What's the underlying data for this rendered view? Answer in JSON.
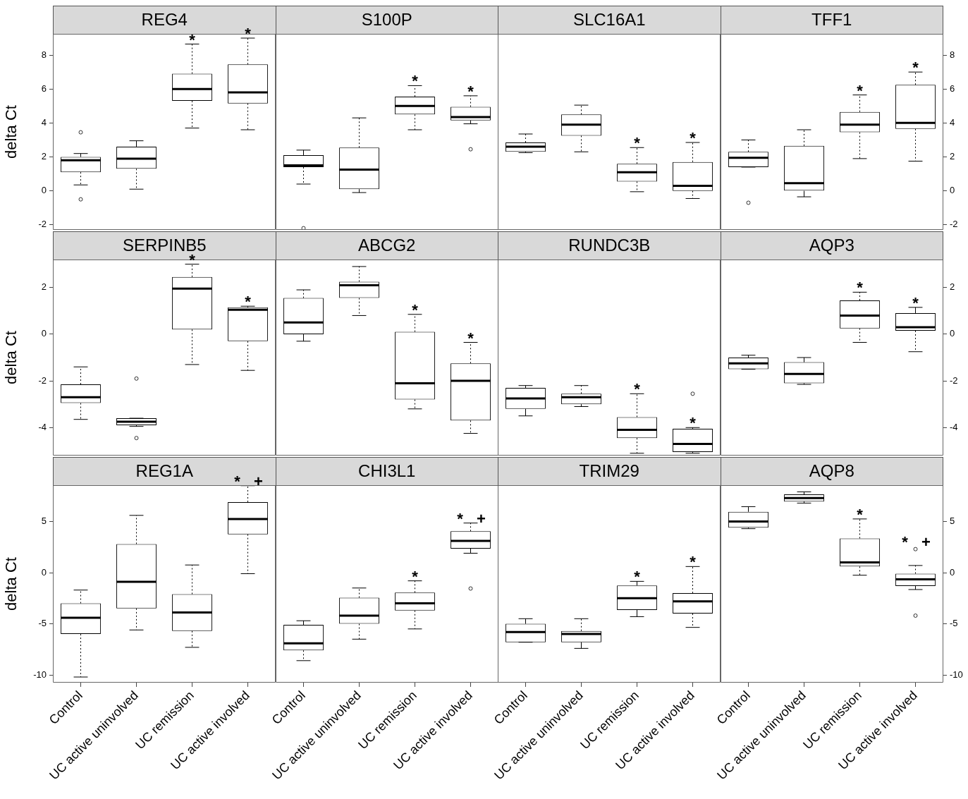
{
  "chart_data": [
    {
      "type": "box",
      "title": "REG4",
      "ylabel": "delta Ct",
      "categories": [
        "Control",
        "UC active uninvolved",
        "UC remission",
        "UC active involved"
      ],
      "ylim": [
        -2.3,
        9.25
      ],
      "yticks": [
        -2,
        0,
        2,
        4,
        6,
        8
      ],
      "tick_labels": "y",
      "boxes": [
        {
          "low": 0.35,
          "q1": 1.1,
          "median": 1.8,
          "q3": 2.0,
          "high": 2.2,
          "outliers": [
            3.45,
            -0.5
          ]
        },
        {
          "low": 0.1,
          "q1": 1.3,
          "median": 1.9,
          "q3": 2.6,
          "high": 2.95
        },
        {
          "low": 3.7,
          "q1": 5.3,
          "median": 6.0,
          "q3": 6.9,
          "high": 8.65
        },
        {
          "low": 3.6,
          "q1": 5.15,
          "median": 5.8,
          "q3": 7.45,
          "high": 9.0
        }
      ],
      "annotations": [
        {
          "text": "*",
          "x": "UC remission",
          "y": 8.65
        },
        {
          "text": "*",
          "x": "UC active involved",
          "y": 9.0
        }
      ]
    },
    {
      "type": "box",
      "title": "S100P",
      "categories": [
        "Control",
        "UC active uninvolved",
        "UC remission",
        "UC active involved"
      ],
      "ylim": [
        -2.3,
        9.25
      ],
      "yticks": [
        -2,
        0,
        2,
        4,
        6,
        8
      ],
      "tick_labels": false,
      "boxes": [
        {
          "low": 0.4,
          "q1": 1.4,
          "median": 1.5,
          "q3": 2.1,
          "high": 2.4,
          "outliers": [
            -2.2
          ]
        },
        {
          "low": -0.1,
          "q1": 0.1,
          "median": 1.25,
          "q3": 2.55,
          "high": 4.3
        },
        {
          "low": 3.6,
          "q1": 4.5,
          "median": 5.0,
          "q3": 5.55,
          "high": 6.2
        },
        {
          "low": 3.95,
          "q1": 4.15,
          "median": 4.35,
          "q3": 4.95,
          "high": 5.6,
          "outliers": [
            2.45
          ]
        }
      ],
      "annotations": [
        {
          "text": "*",
          "x": "UC remission",
          "y": 6.2
        },
        {
          "text": "*",
          "x": "UC active involved",
          "y": 5.6
        }
      ]
    },
    {
      "type": "box",
      "title": "SLC16A1",
      "categories": [
        "Control",
        "UC active uninvolved",
        "UC remission",
        "UC active involved"
      ],
      "ylim": [
        -2.3,
        9.25
      ],
      "yticks": [
        -2,
        0,
        2,
        4,
        6,
        8
      ],
      "tick_labels": false,
      "boxes": [
        {
          "low": 2.25,
          "q1": 2.3,
          "median": 2.6,
          "q3": 2.85,
          "high": 3.35
        },
        {
          "low": 2.3,
          "q1": 3.25,
          "median": 3.9,
          "q3": 4.5,
          "high": 5.05
        },
        {
          "low": -0.05,
          "q1": 0.55,
          "median": 1.1,
          "q3": 1.6,
          "high": 2.55
        },
        {
          "low": -0.45,
          "q1": 0.0,
          "median": 0.3,
          "q3": 1.7,
          "high": 2.85
        }
      ],
      "annotations": [
        {
          "text": "*",
          "x": "UC remission",
          "y": 2.55
        },
        {
          "text": "*",
          "x": "UC active involved",
          "y": 2.85
        }
      ]
    },
    {
      "type": "box",
      "title": "TFF1",
      "categories": [
        "Control",
        "UC active uninvolved",
        "UC remission",
        "UC active involved"
      ],
      "ylim": [
        -2.3,
        9.25
      ],
      "yticks": [
        -2,
        0,
        2,
        4,
        6,
        8
      ],
      "tick_labels": "y",
      "boxes": [
        {
          "low": 1.4,
          "q1": 1.4,
          "median": 1.95,
          "q3": 2.3,
          "high": 3.0,
          "outliers": [
            -0.7
          ]
        },
        {
          "low": -0.35,
          "q1": 0.0,
          "median": 0.45,
          "q3": 2.65,
          "high": 3.6
        },
        {
          "low": 1.9,
          "q1": 3.45,
          "median": 3.9,
          "q3": 4.65,
          "high": 5.65
        },
        {
          "low": 1.75,
          "q1": 3.65,
          "median": 4.0,
          "q3": 6.25,
          "high": 7.0
        }
      ],
      "annotations": [
        {
          "text": "*",
          "x": "UC remission",
          "y": 5.65
        },
        {
          "text": "*",
          "x": "UC active involved",
          "y": 7.0
        }
      ]
    },
    {
      "type": "box",
      "title": "SERPINB5",
      "ylabel": "delta Ct",
      "categories": [
        "Control",
        "UC active uninvolved",
        "UC remission",
        "UC active involved"
      ],
      "ylim": [
        -5.2,
        3.2
      ],
      "yticks": [
        -4,
        -2,
        0,
        2
      ],
      "tick_labels": "y",
      "boxes": [
        {
          "low": -3.65,
          "q1": -2.95,
          "median": -2.7,
          "q3": -2.15,
          "high": -1.4
        },
        {
          "low": -3.95,
          "q1": -3.9,
          "median": -3.75,
          "q3": -3.6,
          "high": -3.6,
          "outliers": [
            -1.9,
            -4.45
          ]
        },
        {
          "low": -1.3,
          "q1": 0.2,
          "median": 1.95,
          "q3": 2.45,
          "high": 3.0
        },
        {
          "low": -1.55,
          "q1": -0.3,
          "median": 1.05,
          "q3": 1.15,
          "high": 1.2
        }
      ],
      "annotations": [
        {
          "text": "*",
          "x": "UC remission",
          "y": 3.0
        },
        {
          "text": "*",
          "x": "UC active involved",
          "y": 1.2
        }
      ]
    },
    {
      "type": "box",
      "title": "ABCG2",
      "categories": [
        "Control",
        "UC active uninvolved",
        "UC remission",
        "UC active involved"
      ],
      "ylim": [
        -5.2,
        3.2
      ],
      "yticks": [
        -4,
        -2,
        0,
        2
      ],
      "tick_labels": false,
      "boxes": [
        {
          "low": -0.3,
          "q1": 0.0,
          "median": 0.5,
          "q3": 1.55,
          "high": 1.9
        },
        {
          "low": 0.8,
          "q1": 1.55,
          "median": 2.1,
          "q3": 2.25,
          "high": 2.9
        },
        {
          "low": -3.2,
          "q1": -2.8,
          "median": -2.1,
          "q3": 0.1,
          "high": 0.85
        },
        {
          "low": -4.25,
          "q1": -3.7,
          "median": -2.0,
          "q3": -1.25,
          "high": -0.35
        }
      ],
      "annotations": [
        {
          "text": "*",
          "x": "UC remission",
          "y": 0.85
        },
        {
          "text": "*",
          "x": "UC active involved",
          "y": -0.35
        }
      ]
    },
    {
      "type": "box",
      "title": "RUNDC3B",
      "categories": [
        "Control",
        "UC active uninvolved",
        "UC remission",
        "UC active involved"
      ],
      "ylim": [
        -5.2,
        3.2
      ],
      "yticks": [
        -4,
        -2,
        0,
        2
      ],
      "tick_labels": false,
      "boxes": [
        {
          "low": -3.5,
          "q1": -3.2,
          "median": -2.75,
          "q3": -2.3,
          "high": -2.2
        },
        {
          "low": -3.1,
          "q1": -3.0,
          "median": -2.7,
          "q3": -2.55,
          "high": -2.2
        },
        {
          "low": -5.1,
          "q1": -4.45,
          "median": -4.1,
          "q3": -3.55,
          "high": -2.55
        },
        {
          "low": -5.1,
          "q1": -5.05,
          "median": -4.7,
          "q3": -4.05,
          "high": -4.0,
          "outliers": [
            -2.55
          ]
        }
      ],
      "annotations": [
        {
          "text": "*",
          "x": "UC remission",
          "y": -2.55
        },
        {
          "text": "*",
          "x": "UC active involved",
          "y": -4.0
        }
      ]
    },
    {
      "type": "box",
      "title": "AQP3",
      "categories": [
        "Control",
        "UC active uninvolved",
        "UC remission",
        "UC active involved"
      ],
      "ylim": [
        -5.2,
        3.2
      ],
      "yticks": [
        -4,
        -2,
        0,
        2
      ],
      "tick_labels": "y",
      "boxes": [
        {
          "low": -1.5,
          "q1": -1.5,
          "median": -1.25,
          "q3": -1.0,
          "high": -0.9
        },
        {
          "low": -2.15,
          "q1": -2.1,
          "median": -1.7,
          "q3": -1.2,
          "high": -1.0
        },
        {
          "low": -0.35,
          "q1": 0.25,
          "median": 0.8,
          "q3": 1.45,
          "high": 1.8
        },
        {
          "low": -0.75,
          "q1": 0.15,
          "median": 0.3,
          "q3": 0.9,
          "high": 1.15
        }
      ],
      "annotations": [
        {
          "text": "*",
          "x": "UC remission",
          "y": 1.8
        },
        {
          "text": "*",
          "x": "UC active involved",
          "y": 1.15
        }
      ]
    },
    {
      "type": "box",
      "title": "REG1A",
      "ylabel": "delta Ct",
      "categories": [
        "Control",
        "UC active uninvolved",
        "UC remission",
        "UC active involved"
      ],
      "ylim": [
        -10.75,
        8.55
      ],
      "yticks": [
        -10,
        -5,
        0,
        5
      ],
      "boxes": [
        {
          "low": -10.2,
          "q1": -6.0,
          "median": -4.4,
          "q3": -3.0,
          "high": -1.7
        },
        {
          "low": -5.6,
          "q1": -3.5,
          "median": -0.9,
          "q3": 2.8,
          "high": 5.6
        },
        {
          "low": -7.3,
          "q1": -5.7,
          "median": -3.9,
          "q3": -2.1,
          "high": 0.75
        },
        {
          "low": -0.1,
          "q1": 3.75,
          "median": 5.25,
          "q3": 6.9,
          "high": 8.5
        }
      ],
      "annotations": [
        {
          "text": "*",
          "x": "UC active involved",
          "y": 8.5
        },
        {
          "text": "+",
          "x": "UC active involved",
          "y": 8.5
        }
      ]
    },
    {
      "type": "box",
      "title": "CHI3L1",
      "categories": [
        "Control",
        "UC active uninvolved",
        "UC remission",
        "UC active involved"
      ],
      "ylim": [
        -10.75,
        8.55
      ],
      "yticks": [
        -10,
        -5,
        0,
        5
      ],
      "tick_labels": "x",
      "boxes": [
        {
          "low": -8.6,
          "q1": -7.6,
          "median": -6.9,
          "q3": -5.1,
          "high": -4.7
        },
        {
          "low": -6.5,
          "q1": -5.0,
          "median": -4.2,
          "q3": -2.45,
          "high": -1.5
        },
        {
          "low": -5.5,
          "q1": -3.7,
          "median": -3.0,
          "q3": -1.95,
          "high": -0.8
        },
        {
          "low": 1.9,
          "q1": 2.35,
          "median": 3.1,
          "q3": 4.05,
          "high": 4.85,
          "outliers": [
            -1.55
          ]
        }
      ],
      "annotations": [
        {
          "text": "*",
          "x": "UC remission",
          "y": -0.8
        },
        {
          "text": "*",
          "x": "UC active involved",
          "y": 4.85
        },
        {
          "text": "+",
          "x": "UC active involved",
          "y": 4.85
        }
      ]
    },
    {
      "type": "box",
      "title": "TRIM29",
      "categories": [
        "Control",
        "UC active uninvolved",
        "UC remission",
        "UC active involved"
      ],
      "ylim": [
        -10.75,
        8.55
      ],
      "yticks": [
        -10,
        -5,
        0,
        5
      ],
      "tick_labels": "x",
      "boxes": [
        {
          "low": -6.8,
          "q1": -6.8,
          "median": -5.8,
          "q3": -5.0,
          "high": -4.5
        },
        {
          "low": -7.4,
          "q1": -6.8,
          "median": -6.0,
          "q3": -5.7,
          "high": -4.5
        },
        {
          "low": -4.3,
          "q1": -3.65,
          "median": -2.5,
          "q3": -1.25,
          "high": -0.85
        },
        {
          "low": -5.35,
          "q1": -4.0,
          "median": -2.8,
          "q3": -2.0,
          "high": 0.6
        }
      ],
      "annotations": [
        {
          "text": "*",
          "x": "UC remission",
          "y": -0.85
        },
        {
          "text": "*",
          "x": "UC active involved",
          "y": 0.6
        }
      ]
    },
    {
      "type": "box",
      "title": "AQP8",
      "categories": [
        "Control",
        "UC active uninvolved",
        "UC remission",
        "UC active involved"
      ],
      "ylim": [
        -10.75,
        8.55
      ],
      "yticks": [
        -10,
        -5,
        0,
        5
      ],
      "boxes": [
        {
          "low": 4.3,
          "q1": 4.4,
          "median": 5.0,
          "q3": 5.95,
          "high": 6.45
        },
        {
          "low": 6.8,
          "q1": 6.95,
          "median": 7.3,
          "q3": 7.65,
          "high": 7.9
        },
        {
          "low": -0.25,
          "q1": 0.6,
          "median": 1.0,
          "q3": 3.35,
          "high": 5.25
        },
        {
          "low": -1.65,
          "q1": -1.3,
          "median": -0.65,
          "q3": -0.1,
          "high": 0.7,
          "outliers": [
            2.3,
            -4.2
          ]
        }
      ],
      "annotations": [
        {
          "text": "*",
          "x": "UC remission",
          "y": 5.25
        },
        {
          "text": "*",
          "x": "UC active involved",
          "y": 0.7
        },
        {
          "text": "+",
          "x": "UC active involved",
          "y": 0.7
        }
      ]
    }
  ]
}
